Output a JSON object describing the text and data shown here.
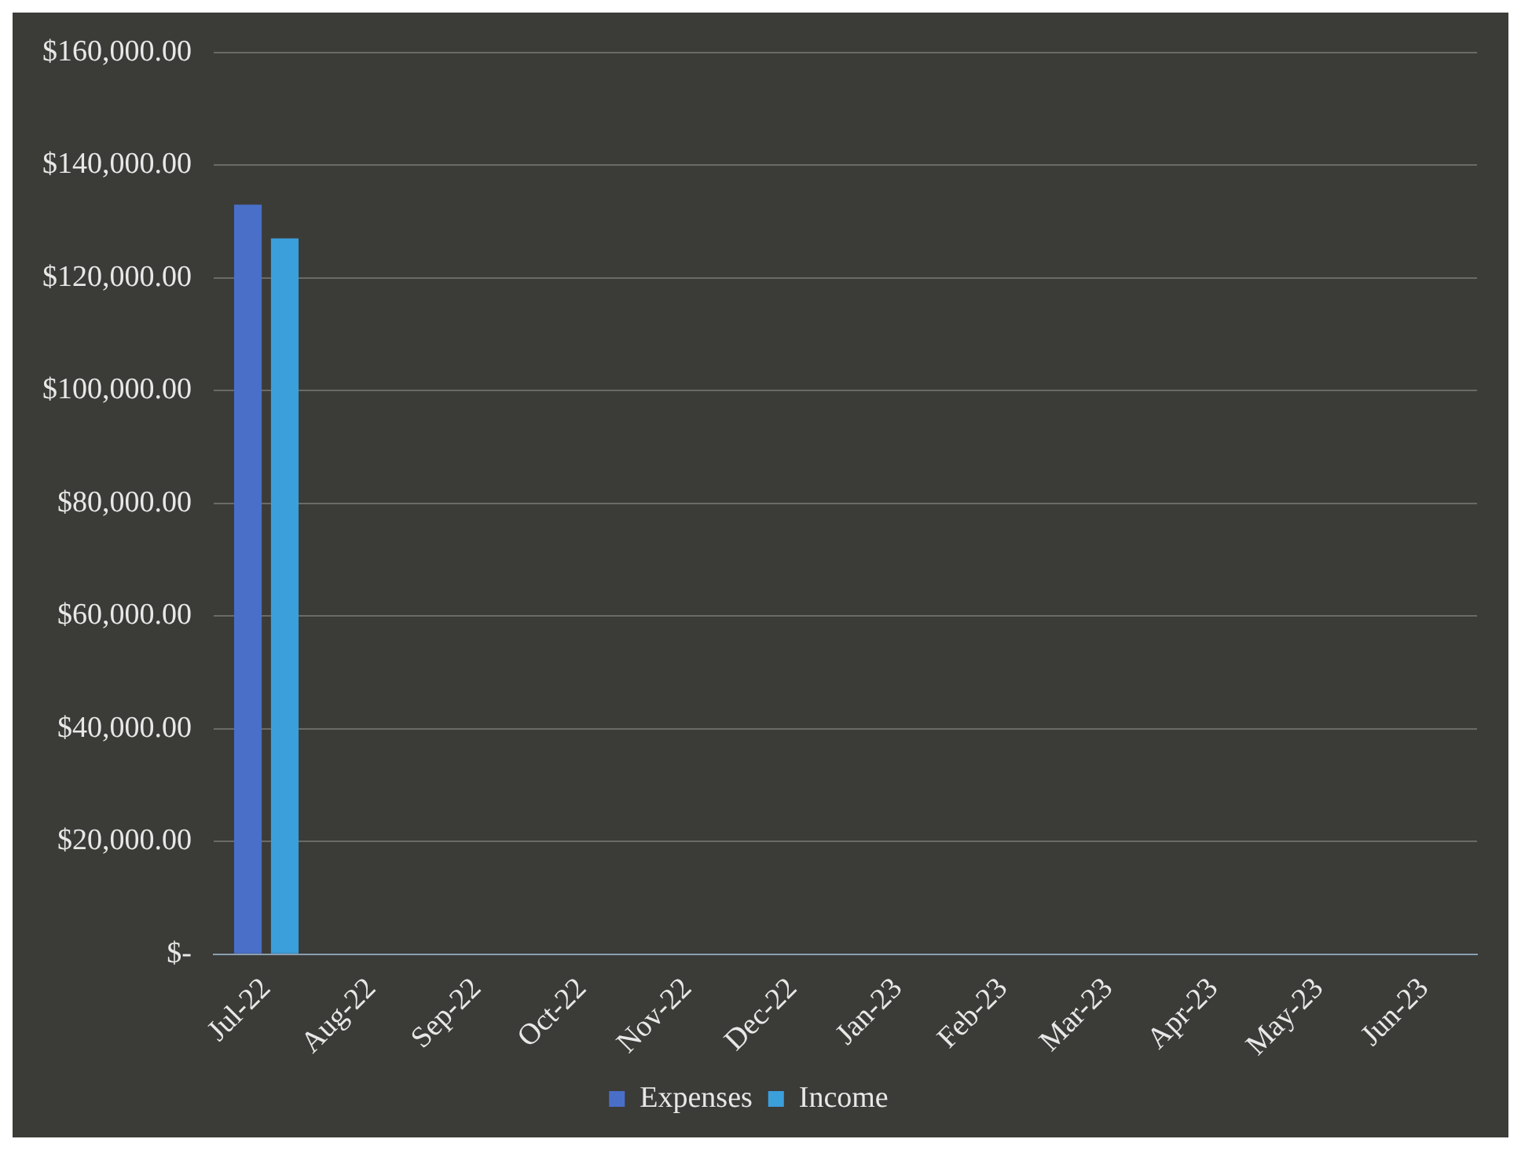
{
  "chart_data": {
    "type": "bar",
    "categories": [
      "Jul-22",
      "Aug-22",
      "Sep-22",
      "Oct-22",
      "Nov-22",
      "Dec-22",
      "Jan-23",
      "Feb-23",
      "Mar-23",
      "Apr-23",
      "May-23",
      "Jun-23"
    ],
    "series": [
      {
        "name": "Expenses",
        "color": "#4a6fc9",
        "values": [
          133000,
          0,
          0,
          0,
          0,
          0,
          0,
          0,
          0,
          0,
          0,
          0
        ]
      },
      {
        "name": "Income",
        "color": "#3b9fdc",
        "values": [
          127000,
          0,
          0,
          0,
          0,
          0,
          0,
          0,
          0,
          0,
          0,
          0
        ]
      }
    ],
    "ylim": [
      0,
      160000
    ],
    "yticks": [
      {
        "value": 0,
        "label": "$-"
      },
      {
        "value": 20000,
        "label": "$20,000.00"
      },
      {
        "value": 40000,
        "label": "$40,000.00"
      },
      {
        "value": 60000,
        "label": "$60,000.00"
      },
      {
        "value": 80000,
        "label": "$80,000.00"
      },
      {
        "value": 100000,
        "label": "$100,000.00"
      },
      {
        "value": 120000,
        "label": "$120,000.00"
      },
      {
        "value": 140000,
        "label": "$140,000.00"
      },
      {
        "value": 160000,
        "label": "$160,000.00"
      }
    ],
    "grid": "y",
    "legend": "bottom"
  }
}
